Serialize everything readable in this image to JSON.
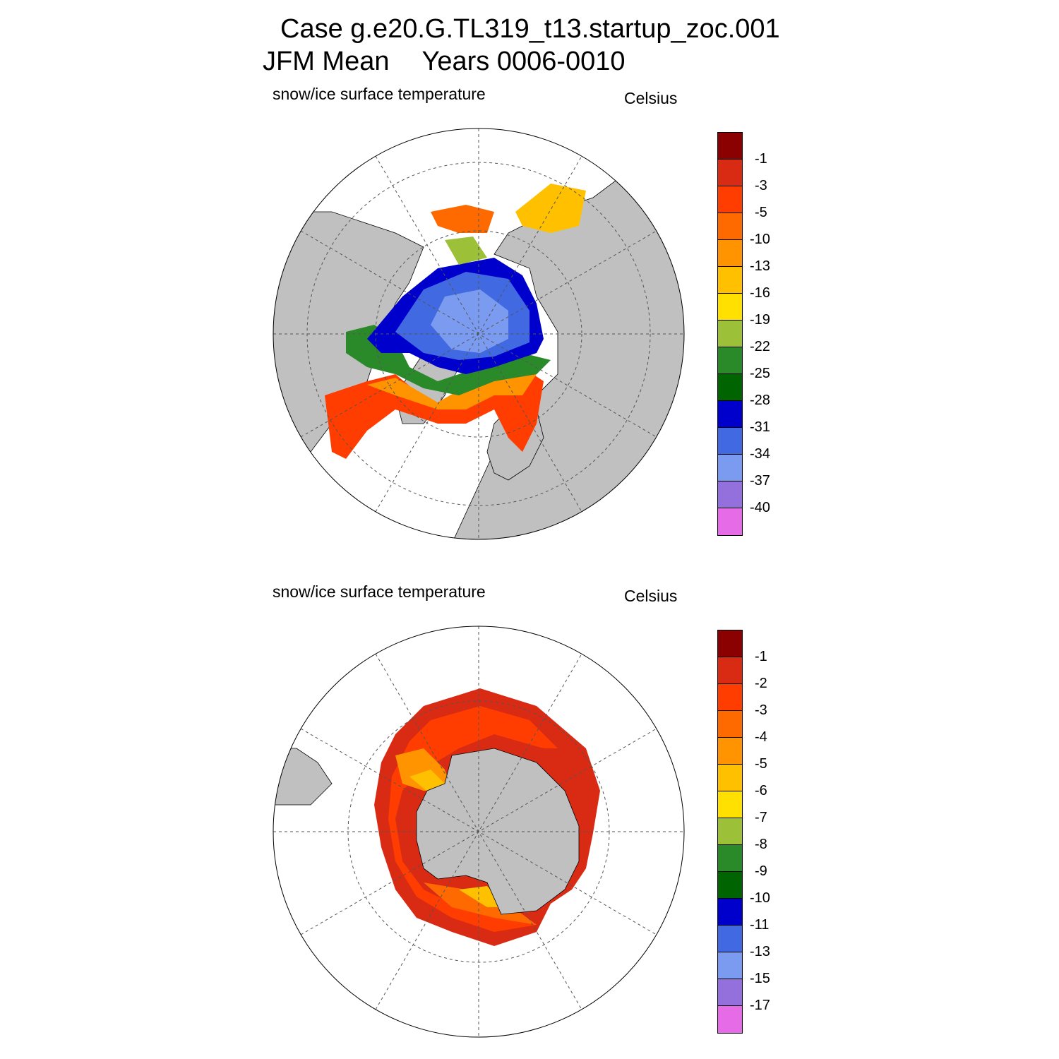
{
  "header": {
    "case_line": "Case g.e20.G.TL319_t13.startup_zoc.001",
    "season": "JFM Mean",
    "years": "Years 0006-0010"
  },
  "panels": [
    {
      "variable_label": "snow/ice surface temperature",
      "units_label": "Celsius",
      "hemisphere": "north",
      "colorbar_ticks": [
        "-1",
        "-3",
        "-5",
        "-10",
        "-13",
        "-16",
        "-19",
        "-22",
        "-25",
        "-28",
        "-31",
        "-34",
        "-37",
        "-40"
      ]
    },
    {
      "variable_label": "snow/ice surface temperature",
      "units_label": "Celsius",
      "hemisphere": "south",
      "colorbar_ticks": [
        "-1",
        "-2",
        "-3",
        "-4",
        "-5",
        "-6",
        "-7",
        "-8",
        "-9",
        "-10",
        "-11",
        "-13",
        "-15",
        "-17"
      ]
    }
  ],
  "colors": {
    "palette": [
      "#8b0000",
      "#d92b14",
      "#ff3d00",
      "#ff6a00",
      "#ff9400",
      "#ffc000",
      "#ffe000",
      "#9cc038",
      "#2a8a2a",
      "#006400",
      "#0000cc",
      "#4169e1",
      "#7a9bef",
      "#9370db",
      "#e66be6"
    ],
    "land": "#c0c0c0",
    "ocean": "#ffffff"
  }
}
